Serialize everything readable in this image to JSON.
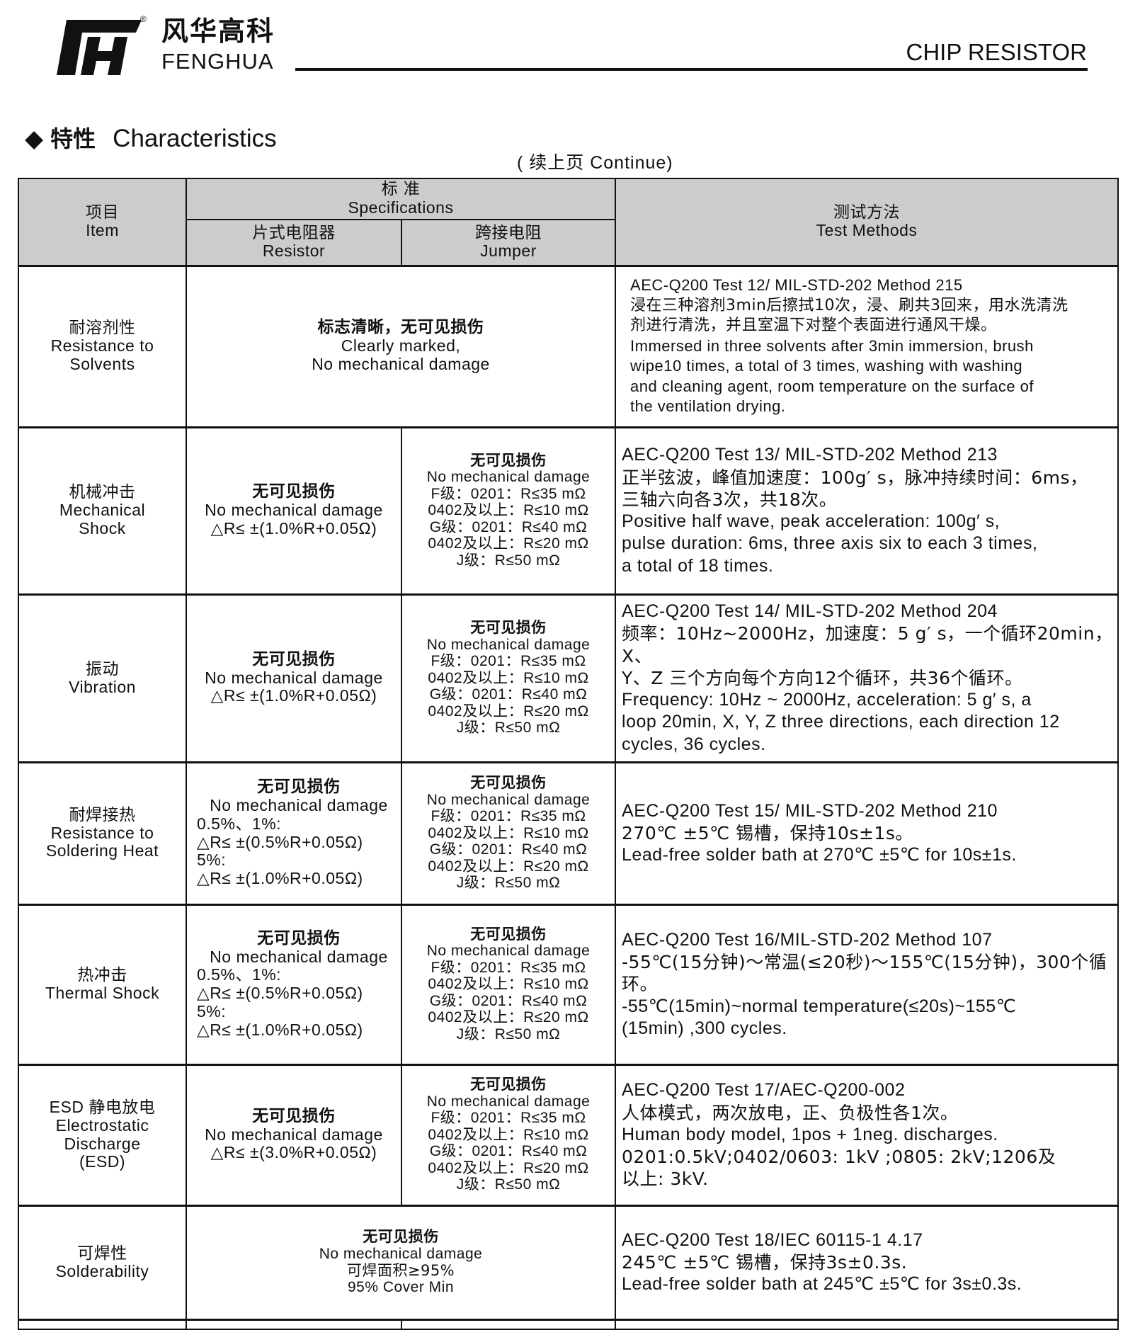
{
  "header": {
    "brand_cn": "风华高科",
    "brand_en": "FENGHUA",
    "registered_mark": "®",
    "doc_title": "CHIP RESISTOR"
  },
  "section": {
    "bullet_icon": "diamond",
    "title_cn": "特性",
    "title_en": "Characteristics",
    "continue_note": "( 续上页 Continue)"
  },
  "table": {
    "head": {
      "item_cn": "项目",
      "item_en": "Item",
      "spec_cn": "标 准",
      "spec_en": "Specifications",
      "resistor_cn": "片式电阻器",
      "resistor_en": "Resistor",
      "jumper_cn": "跨接电阻",
      "jumper_en": "Jumper",
      "method_cn": "测试方法",
      "method_en": "Test Methods"
    },
    "jumper_spec": [
      "无可见损伤",
      "No mechanical damage",
      "F级：0201：R≤35 mΩ",
      "0402及以上：R≤10 mΩ",
      "G级：0201：R≤40 mΩ",
      "0402及以上：R≤20 mΩ",
      "J级：R≤50 mΩ"
    ],
    "rows": [
      {
        "item": [
          "耐溶剂性",
          "Resistance to",
          "Solvents"
        ],
        "merged_spec": [
          "标志清晰，无可见损伤",
          "Clearly marked,",
          "No mechanical damage"
        ],
        "method": [
          "AEC-Q200 Test 12/ MIL-STD-202 Method 215",
          "浸在三种溶剂3min后擦拭10次，浸、刷共3回来，用水洗清洗",
          "剂进行清洗，并且室温下对整个表面进行通风干燥。",
          "Immersed in three solvents after 3min immersion, brush",
          " wipe10 times, a total of 3 times, washing with washing",
          "and cleaning agent, room temperature on the surface of",
          "the ventilation drying."
        ]
      },
      {
        "item": [
          "机械冲击",
          "Mechanical",
          "Shock"
        ],
        "resistor": [
          "无可见损伤",
          "No mechanical damage",
          "△R≤ ±(1.0%R+0.05Ω)"
        ],
        "method": [
          "AEC-Q200 Test  13/ MIL-STD-202 Method 213",
          "正半弦波，峰值加速度：100g′ s，脉冲持续时间：6ms，",
          "三轴六向各3次，共18次。",
          "Positive half wave, peak acceleration: 100g′ s,",
          "pulse duration: 6ms, three axis six to each 3 times,",
          "a total of 18 times."
        ]
      },
      {
        "item": [
          "振动",
          "Vibration"
        ],
        "resistor": [
          "无可见损伤",
          "No mechanical damage",
          "△R≤ ±(1.0%R+0.05Ω)"
        ],
        "method": [
          "AEC-Q200 Test  14/ MIL-STD-202 Method 204",
          "频率：10Hz~2000Hz，加速度：5 g′ s，一个循环20min，X、",
          "Y、Z 三个方向每个方向12个循环，共36个循环。",
          "Frequency: 10Hz ~ 2000Hz, acceleration: 5 g′ s, a",
          "loop 20min, X, Y, Z three directions, each direction 12",
          "cycles, 36 cycles."
        ]
      },
      {
        "item": [
          "耐焊接热",
          "Resistance to",
          "Soldering Heat"
        ],
        "resistor": [
          "无可见损伤",
          "No mechanical damage",
          "0.5%、1%:",
          "△R≤ ±(0.5%R+0.05Ω)",
          "5%:",
          "△R≤ ±(1.0%R+0.05Ω)"
        ],
        "method": [
          "AEC-Q200 Test  15/ MIL-STD-202 Method 210",
          "270℃ ±5℃ 锡槽，保持10s±1s。",
          "Lead-free solder bath at 270℃ ±5℃ for 10s±1s."
        ]
      },
      {
        "item": [
          "热冲击",
          "Thermal Shock"
        ],
        "resistor": [
          "无可见损伤",
          "No mechanical damage",
          "0.5%、1%:",
          "△R≤ ±(0.5%R+0.05Ω)",
          "5%:",
          "△R≤ ±(1.0%R+0.05Ω)"
        ],
        "method": [
          "AEC-Q200 Test  16/MIL-STD-202 Method 107",
          "-55℃(15分钟)～常温(≤20秒)～155℃(15分钟)，300个循环。",
          "-55℃(15min)~normal temperature(≤20s)~155℃",
          "(15min) ,300 cycles."
        ]
      },
      {
        "item": [
          "ESD 静电放电",
          "Electrostatic",
          "Discharge",
          "(ESD)"
        ],
        "resistor": [
          "无可见损伤",
          "No mechanical damage",
          "△R≤ ±(3.0%R+0.05Ω)"
        ],
        "method": [
          "AEC-Q200 Test  17/AEC-Q200-002",
          "人体模式，两次放电，正、负极性各1次。",
          "Human body model, 1pos + 1neg. discharges.",
          "0201:0.5kV;0402/0603: 1kV ;0805: 2kV;1206及",
          "以上: 3kV."
        ]
      },
      {
        "item": [
          "可焊性",
          "Solderability"
        ],
        "merged_spec": [
          "无可见损伤",
          "No mechanical damage",
          "可焊面积≥95%",
          "95% Cover Min"
        ],
        "method": [
          "AEC-Q200 Test  18/IEC 60115-1 4.17",
          "245℃ ±5℃ 锡槽，保持3s±0.3s.",
          "Lead-free solder bath at 245℃ ±5℃ for 3s±0.3s."
        ]
      }
    ]
  }
}
